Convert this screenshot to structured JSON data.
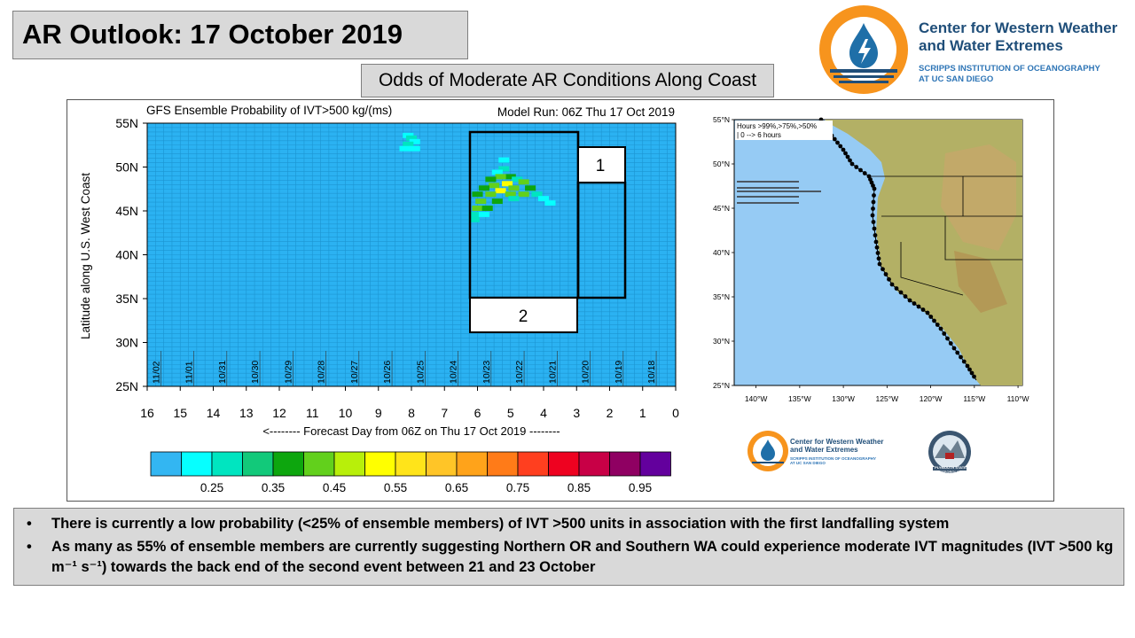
{
  "header": {
    "title": "AR Outlook: 17 October 2019",
    "subtitle": "Odds of Moderate AR Conditions Along Coast"
  },
  "logo": {
    "line1": "Center for Western Weather",
    "line2": "and Water Extremes",
    "line3": "SCRIPPS INSTITUTION OF OCEANOGRAPHY",
    "line4": "AT UC SAN DIEGO",
    "primary_color": "#f7941d",
    "secondary_color": "#1f4e79",
    "icon": "water-drop-icon"
  },
  "chart_data": [
    {
      "type": "heatmap",
      "title": "GFS Ensemble Probability of IVT>500 kg/(ms)",
      "model_run": "Model Run: 06Z Thu 17 Oct 2019",
      "ylabel": "Latitude along U.S. West Coast",
      "xlabel": "<-------- Forecast Day from 06Z on Thu 17 Oct 2019 --------",
      "xlim": [
        16,
        0
      ],
      "ylim": [
        25,
        55
      ],
      "y_ticks": [
        "55N",
        "50N",
        "45N",
        "40N",
        "35N",
        "30N",
        "25N"
      ],
      "x_ticks": [
        "16",
        "15",
        "14",
        "13",
        "12",
        "11",
        "10",
        "9",
        "8",
        "7",
        "6",
        "5",
        "4",
        "3",
        "2",
        "1",
        "0"
      ],
      "date_labels": [
        {
          "label": "11/02",
          "day": 15.75
        },
        {
          "label": "11/01",
          "day": 14.75
        },
        {
          "label": "10/31",
          "day": 13.75
        },
        {
          "label": "10/30",
          "day": 12.75
        },
        {
          "label": "10/29",
          "day": 11.75
        },
        {
          "label": "10/28",
          "day": 10.75
        },
        {
          "label": "10/27",
          "day": 9.75
        },
        {
          "label": "10/26",
          "day": 8.75
        },
        {
          "label": "10/25",
          "day": 7.75
        },
        {
          "label": "10/24",
          "day": 6.75
        },
        {
          "label": "10/23",
          "day": 5.75
        },
        {
          "label": "10/22",
          "day": 4.75
        },
        {
          "label": "10/21",
          "day": 3.75
        },
        {
          "label": "10/20",
          "day": 2.75
        },
        {
          "label": "10/19",
          "day": 1.75
        },
        {
          "label": "10/18",
          "day": 0.75
        }
      ],
      "background_color": "#2bb2f2",
      "colorbar": {
        "colors": [
          "#33b6f2",
          "#06ffff",
          "#00e5c0",
          "#12c97a",
          "#0da60e",
          "#62d01c",
          "#b8ef0a",
          "#ffff00",
          "#ffe41a",
          "#ffc527",
          "#ffa31a",
          "#ff7b18",
          "#ff3f1f",
          "#ee0220",
          "#c80046",
          "#8f0062",
          "#63009d"
        ],
        "labels": [
          "0.25",
          "0.35",
          "0.45",
          "0.55",
          "0.65",
          "0.75",
          "0.85",
          "0.95"
        ]
      },
      "event_boxes": [
        {
          "label": "1"
        },
        {
          "label": "2"
        }
      ],
      "cells": [
        {
          "day": 8.1,
          "lat": 53.6,
          "value": 0.3
        },
        {
          "day": 8.0,
          "lat": 53.3,
          "value": 0.35
        },
        {
          "day": 7.9,
          "lat": 52.9,
          "value": 0.3
        },
        {
          "day": 8.1,
          "lat": 52.6,
          "value": 0.35
        },
        {
          "day": 8.2,
          "lat": 52.1,
          "value": 0.3
        },
        {
          "day": 7.9,
          "lat": 52.1,
          "value": 0.3
        },
        {
          "day": 5.2,
          "lat": 50.8,
          "value": 0.3
        },
        {
          "day": 5.2,
          "lat": 49.8,
          "value": 0.35
        },
        {
          "day": 5.4,
          "lat": 49.4,
          "value": 0.3
        },
        {
          "day": 5.0,
          "lat": 48.9,
          "value": 0.4
        },
        {
          "day": 5.3,
          "lat": 48.9,
          "value": 0.45
        },
        {
          "day": 5.6,
          "lat": 48.6,
          "value": 0.4
        },
        {
          "day": 4.8,
          "lat": 48.6,
          "value": 0.35
        },
        {
          "day": 4.6,
          "lat": 48.3,
          "value": 0.5
        },
        {
          "day": 5.1,
          "lat": 48.1,
          "value": 0.55
        },
        {
          "day": 5.5,
          "lat": 47.9,
          "value": 0.5
        },
        {
          "day": 5.8,
          "lat": 47.6,
          "value": 0.4
        },
        {
          "day": 4.9,
          "lat": 47.6,
          "value": 0.45
        },
        {
          "day": 4.4,
          "lat": 47.6,
          "value": 0.4
        },
        {
          "day": 5.3,
          "lat": 47.3,
          "value": 0.55
        },
        {
          "day": 6.0,
          "lat": 46.9,
          "value": 0.4
        },
        {
          "day": 5.6,
          "lat": 46.9,
          "value": 0.45
        },
        {
          "day": 5.0,
          "lat": 46.9,
          "value": 0.5
        },
        {
          "day": 4.6,
          "lat": 46.9,
          "value": 0.45
        },
        {
          "day": 4.2,
          "lat": 46.9,
          "value": 0.35
        },
        {
          "day": 5.9,
          "lat": 46.1,
          "value": 0.45
        },
        {
          "day": 5.4,
          "lat": 46.1,
          "value": 0.4
        },
        {
          "day": 4.9,
          "lat": 46.4,
          "value": 0.35
        },
        {
          "day": 4.0,
          "lat": 46.4,
          "value": 0.3
        },
        {
          "day": 3.8,
          "lat": 45.9,
          "value": 0.3
        },
        {
          "day": 6.0,
          "lat": 45.3,
          "value": 0.45
        },
        {
          "day": 5.7,
          "lat": 45.3,
          "value": 0.4
        },
        {
          "day": 6.1,
          "lat": 44.6,
          "value": 0.35
        },
        {
          "day": 5.8,
          "lat": 44.6,
          "value": 0.3
        },
        {
          "day": 6.1,
          "lat": 44.0,
          "value": 0.35
        }
      ]
    },
    {
      "type": "map",
      "legend": {
        "line1": "Hours >99%,>75%,>50%",
        "line2": "| 0 --> 6 hours"
      },
      "lat_ticks": [
        "55°N",
        "50°N",
        "45°N",
        "40°N",
        "35°N",
        "30°N",
        "25°N"
      ],
      "lon_ticks": [
        "140°W",
        "135°W",
        "130°W",
        "125°W",
        "120°W",
        "115°W",
        "110°W"
      ],
      "bar_rows": [
        {
          "lat": 48.0,
          "lengths": [
            0,
            0,
            1
          ]
        },
        {
          "lat": 47.3,
          "lengths": [
            0,
            0,
            1
          ]
        },
        {
          "lat": 46.9,
          "lengths": [
            0,
            0,
            2
          ]
        },
        {
          "lat": 46.3,
          "lengths": [
            0,
            0,
            1
          ]
        },
        {
          "lat": 45.6,
          "lengths": [
            0,
            0,
            1
          ]
        }
      ],
      "ocean_color": "#96cbf4",
      "land_color": "#b3b065"
    }
  ],
  "small_logos": {
    "cw3e_line1": "Center for Western Weather",
    "cw3e_line2": "and Water Extremes",
    "cw3e_line3": "SCRIPPS INSTITUTION OF OCEANOGRAPHY",
    "cw3e_line4": "AT UC SAN DIEGO",
    "plymouth_text": "PLYMOUTH STATE METEOROLOGY"
  },
  "bullets": [
    "There is currently a low probability  (<25% of ensemble members) of IVT >500 units in association  with the first landfalling system",
    "As many as 55% of ensemble members are currently suggesting  Northern OR and Southern WA could experience moderate  IVT magnitudes  (IVT >500 kg m⁻¹ s⁻¹) towards  the back end of the second event between 21 and 23 October"
  ]
}
